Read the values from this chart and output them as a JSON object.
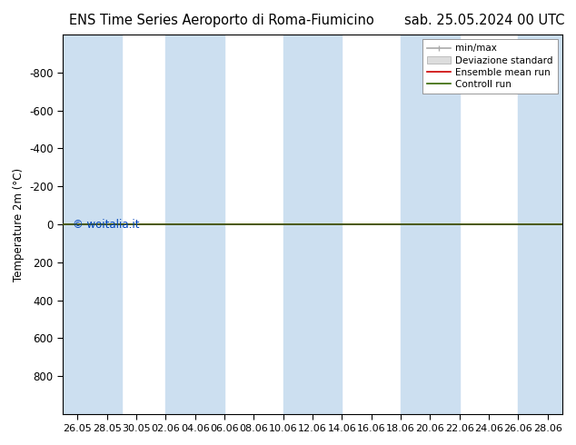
{
  "title_left": "ENS Time Series Aeroporto di Roma-Fiumicino",
  "title_right": "sab. 25.05.2024 00 UTC",
  "ylabel": "Temperature 2m (°C)",
  "ylim": [
    -1000,
    1000
  ],
  "yticks": [
    -800,
    -600,
    -400,
    -200,
    0,
    200,
    400,
    600,
    800
  ],
  "x_tick_labels": [
    "26.05",
    "28.05",
    "30.05",
    "02.06",
    "04.06",
    "06.06",
    "08.06",
    "10.06",
    "12.06",
    "14.06",
    "16.06",
    "18.06",
    "20.06",
    "22.06",
    "24.06",
    "26.06",
    "28.06"
  ],
  "background_color": "#ffffff",
  "plot_bg_color": "#ffffff",
  "stripe_color": "#ccdff0",
  "stripe_positions": [
    0,
    1,
    3,
    5,
    7,
    9,
    11,
    13,
    15
  ],
  "legend_items": [
    {
      "label": "min/max",
      "color": "#aaaaaa",
      "lw": 1.2
    },
    {
      "label": "Deviazione standard",
      "color": "#cccccc",
      "lw": 8
    },
    {
      "label": "Ensemble mean run",
      "color": "#cc0000",
      "lw": 1.2
    },
    {
      "label": "Controll run",
      "color": "#336600",
      "lw": 1.2
    }
  ],
  "green_line_y": 0,
  "red_line_y": 0,
  "watermark": "© woitalia.it",
  "watermark_color": "#0044bb",
  "title_fontsize": 10.5,
  "axis_fontsize": 8.5,
  "tick_label_fontsize": 8,
  "invert_yaxis": true
}
